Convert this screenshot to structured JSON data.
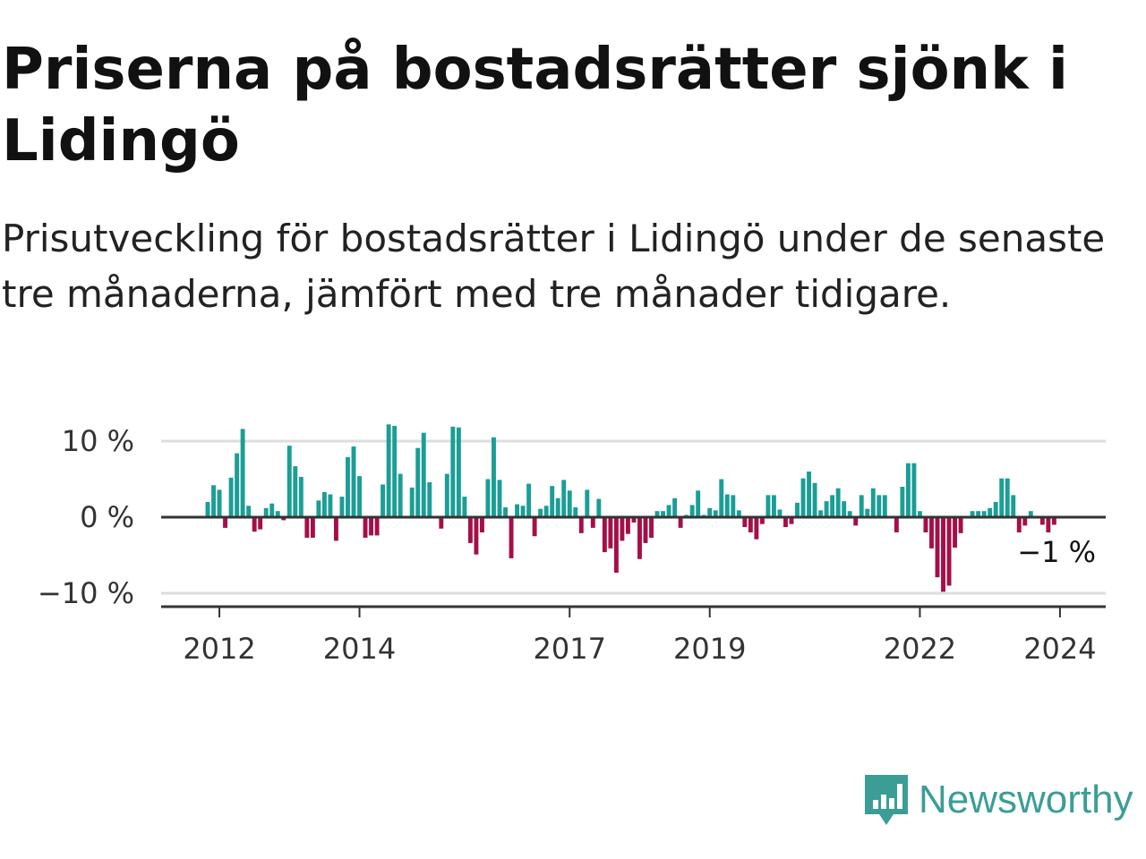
{
  "title": "Priserna på bostadsrätter sjönk i Lidingö",
  "subtitle": "Prisutveckling för bostadsrätter i Lidingö under de senaste tre månaderna, jämfört med tre månader tidigare.",
  "brand": {
    "name": "Newsworthy",
    "icon": "newsworthy-logo-icon",
    "color": "#3a9e96"
  },
  "colors": {
    "positive": "#1a9e96",
    "negative": "#a50f48",
    "grid": "#dddddd",
    "axis": "#333333"
  },
  "chart_data": {
    "type": "bar",
    "title": "Priserna på bostadsrätter sjönk i Lidingö",
    "xlabel": "",
    "ylabel": "",
    "ylim": [
      -12,
      12
    ],
    "y_ticks": [
      10,
      0,
      -10
    ],
    "y_tick_labels": [
      "10 %",
      "0 %",
      "−10 %"
    ],
    "x_tick_labels": [
      "2012",
      "2014",
      "2017",
      "2019",
      "2022",
      "2024"
    ],
    "x_tick_dates": [
      "2012-01",
      "2014-01",
      "2017-01",
      "2019-01",
      "2022-01",
      "2024-01"
    ],
    "grid": true,
    "last_value_label": "−1 %",
    "start_month": "2011-11",
    "values": [
      2,
      4.2,
      3.6,
      -1.4,
      5.2,
      8.4,
      11.6,
      1.5,
      -1.9,
      -1.6,
      1.2,
      1.8,
      0.8,
      -0.4,
      9.4,
      6.7,
      5.3,
      -2.7,
      -2.7,
      2.2,
      3.3,
      3,
      -3.1,
      2.7,
      7.9,
      9.3,
      5.4,
      -2.7,
      -2.4,
      -2.4,
      4.3,
      12.2,
      12,
      5.7,
      0,
      3.9,
      9.1,
      11.1,
      4.6,
      0,
      -1.5,
      5.7,
      11.9,
      11.8,
      2.7,
      -3.4,
      -4.9,
      -2,
      5,
      10.5,
      4.9,
      1.3,
      -5.4,
      1.7,
      1.5,
      4.4,
      -2.5,
      1.1,
      1.5,
      4.1,
      2.5,
      4.9,
      3.5,
      1.3,
      -2.1,
      3.6,
      -1.4,
      2.4,
      -4.6,
      -4.1,
      -7.3,
      -3.1,
      -2.2,
      -0.7,
      -5.5,
      -3.4,
      -2.7,
      0.8,
      0.8,
      1.6,
      2.5,
      -1.4,
      0.3,
      1.6,
      3.5,
      0.3,
      1.2,
      0.9,
      5,
      3,
      2.9,
      0.9,
      -1.3,
      -2,
      -2.9,
      -0.9,
      2.9,
      2.9,
      1,
      -1.3,
      -0.9,
      1.9,
      5.1,
      6,
      4.5,
      0.9,
      2.1,
      2.9,
      3.8,
      2.1,
      0.8,
      -1.1,
      2.9,
      1.1,
      3.8,
      2.9,
      2.9,
      0,
      -2,
      4,
      7.1,
      7.1,
      0.8,
      -2,
      -4.1,
      -7.9,
      -9.8,
      -9,
      -4,
      -2.1,
      0,
      0.8,
      0.8,
      0.8,
      1.2,
      2,
      5.1,
      5.1,
      2.9,
      -2,
      -1.1,
      0.8,
      0,
      -1,
      -2,
      -1
    ]
  }
}
